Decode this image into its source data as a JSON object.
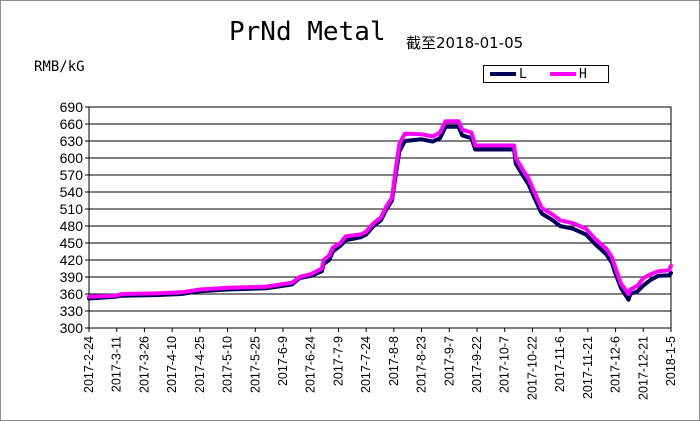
{
  "chart_data": {
    "type": "line",
    "title": "PrNd Metal",
    "subtitle": "截至2018-01-05",
    "ylabel": "RMB/kG",
    "xlabel": "",
    "ylim": [
      300,
      690
    ],
    "y_ticks": [
      300,
      330,
      360,
      390,
      420,
      450,
      480,
      510,
      540,
      570,
      600,
      630,
      660,
      690
    ],
    "grid": true,
    "legend_position": "top-right",
    "x_tick_labels": [
      "2017-2-24",
      "2017-3-11",
      "2017-3-26",
      "2017-4-10",
      "2017-4-25",
      "2017-5-10",
      "2017-5-25",
      "2017-6-9",
      "2017-6-24",
      "2017-7-9",
      "2017-7-24",
      "2017-8-8",
      "2017-8-23",
      "2017-9-7",
      "2017-9-22",
      "2017-10-7",
      "2017-10-22",
      "2017-11-6",
      "2017-11-21",
      "2017-12-6",
      "2017-12-21",
      "2018-1-5"
    ],
    "series": [
      {
        "name": "L",
        "color": "#00005a",
        "points": [
          [
            "2017-02-24",
            352
          ],
          [
            "2017-03-10",
            355
          ],
          [
            "2017-03-14",
            357
          ],
          [
            "2017-04-01",
            358
          ],
          [
            "2017-04-15",
            360
          ],
          [
            "2017-04-25",
            365
          ],
          [
            "2017-05-10",
            368
          ],
          [
            "2017-05-31",
            370
          ],
          [
            "2017-06-06",
            373
          ],
          [
            "2017-06-14",
            377
          ],
          [
            "2017-06-18",
            388
          ],
          [
            "2017-06-24",
            392
          ],
          [
            "2017-06-30",
            400
          ],
          [
            "2017-07-01",
            413
          ],
          [
            "2017-07-04",
            420
          ],
          [
            "2017-07-06",
            435
          ],
          [
            "2017-07-10",
            445
          ],
          [
            "2017-07-13",
            455
          ],
          [
            "2017-07-21",
            460
          ],
          [
            "2017-07-24",
            465
          ],
          [
            "2017-07-28",
            480
          ],
          [
            "2017-08-01",
            490
          ],
          [
            "2017-08-04",
            510
          ],
          [
            "2017-08-07",
            525
          ],
          [
            "2017-08-09",
            570
          ],
          [
            "2017-08-11",
            612
          ],
          [
            "2017-08-14",
            630
          ],
          [
            "2017-08-23",
            633
          ],
          [
            "2017-08-29",
            629
          ],
          [
            "2017-09-02",
            635
          ],
          [
            "2017-09-05",
            655
          ],
          [
            "2017-09-12",
            655
          ],
          [
            "2017-09-14",
            640
          ],
          [
            "2017-09-19",
            635
          ],
          [
            "2017-09-21",
            615
          ],
          [
            "2017-10-12",
            615
          ],
          [
            "2017-10-13",
            590
          ],
          [
            "2017-10-17",
            568
          ],
          [
            "2017-10-20",
            553
          ],
          [
            "2017-10-23",
            530
          ],
          [
            "2017-10-27",
            502
          ],
          [
            "2017-11-02",
            490
          ],
          [
            "2017-11-06",
            480
          ],
          [
            "2017-11-13",
            475
          ],
          [
            "2017-11-20",
            465
          ],
          [
            "2017-11-25",
            448
          ],
          [
            "2017-12-01",
            430
          ],
          [
            "2017-12-04",
            415
          ],
          [
            "2017-12-06",
            395
          ],
          [
            "2017-12-09",
            370
          ],
          [
            "2017-12-13",
            350
          ],
          [
            "2017-12-14",
            360
          ],
          [
            "2017-12-18",
            365
          ],
          [
            "2017-12-21",
            375
          ],
          [
            "2017-12-25",
            385
          ],
          [
            "2017-12-29",
            392
          ],
          [
            "2018-01-04",
            393
          ],
          [
            "2018-01-05",
            397
          ]
        ]
      },
      {
        "name": "H",
        "color": "#ff00ff",
        "points": [
          [
            "2017-02-24",
            355
          ],
          [
            "2017-03-10",
            357
          ],
          [
            "2017-03-14",
            360
          ],
          [
            "2017-04-01",
            361
          ],
          [
            "2017-04-15",
            363
          ],
          [
            "2017-04-25",
            368
          ],
          [
            "2017-05-10",
            371
          ],
          [
            "2017-05-31",
            373
          ],
          [
            "2017-06-06",
            376
          ],
          [
            "2017-06-14",
            380
          ],
          [
            "2017-06-18",
            390
          ],
          [
            "2017-06-24",
            395
          ],
          [
            "2017-06-30",
            405
          ],
          [
            "2017-07-01",
            420
          ],
          [
            "2017-07-04",
            428
          ],
          [
            "2017-07-06",
            442
          ],
          [
            "2017-07-10",
            450
          ],
          [
            "2017-07-13",
            462
          ],
          [
            "2017-07-21",
            465
          ],
          [
            "2017-07-24",
            470
          ],
          [
            "2017-07-28",
            485
          ],
          [
            "2017-08-01",
            495
          ],
          [
            "2017-08-04",
            515
          ],
          [
            "2017-08-07",
            530
          ],
          [
            "2017-08-09",
            580
          ],
          [
            "2017-08-11",
            625
          ],
          [
            "2017-08-14",
            643
          ],
          [
            "2017-08-23",
            642
          ],
          [
            "2017-08-29",
            638
          ],
          [
            "2017-09-02",
            645
          ],
          [
            "2017-09-05",
            665
          ],
          [
            "2017-09-12",
            665
          ],
          [
            "2017-09-14",
            650
          ],
          [
            "2017-09-19",
            645
          ],
          [
            "2017-09-21",
            622
          ],
          [
            "2017-10-12",
            622
          ],
          [
            "2017-10-13",
            600
          ],
          [
            "2017-10-17",
            578
          ],
          [
            "2017-10-20",
            563
          ],
          [
            "2017-10-23",
            540
          ],
          [
            "2017-10-27",
            512
          ],
          [
            "2017-11-02",
            500
          ],
          [
            "2017-11-06",
            490
          ],
          [
            "2017-11-13",
            485
          ],
          [
            "2017-11-20",
            475
          ],
          [
            "2017-11-25",
            457
          ],
          [
            "2017-12-01",
            440
          ],
          [
            "2017-12-04",
            425
          ],
          [
            "2017-12-06",
            405
          ],
          [
            "2017-12-09",
            378
          ],
          [
            "2017-12-13",
            360
          ],
          [
            "2017-12-14",
            368
          ],
          [
            "2017-12-18",
            375
          ],
          [
            "2017-12-21",
            388
          ],
          [
            "2017-12-25",
            395
          ],
          [
            "2017-12-29",
            400
          ],
          [
            "2018-01-04",
            402
          ],
          [
            "2018-01-05",
            410
          ]
        ]
      }
    ]
  }
}
